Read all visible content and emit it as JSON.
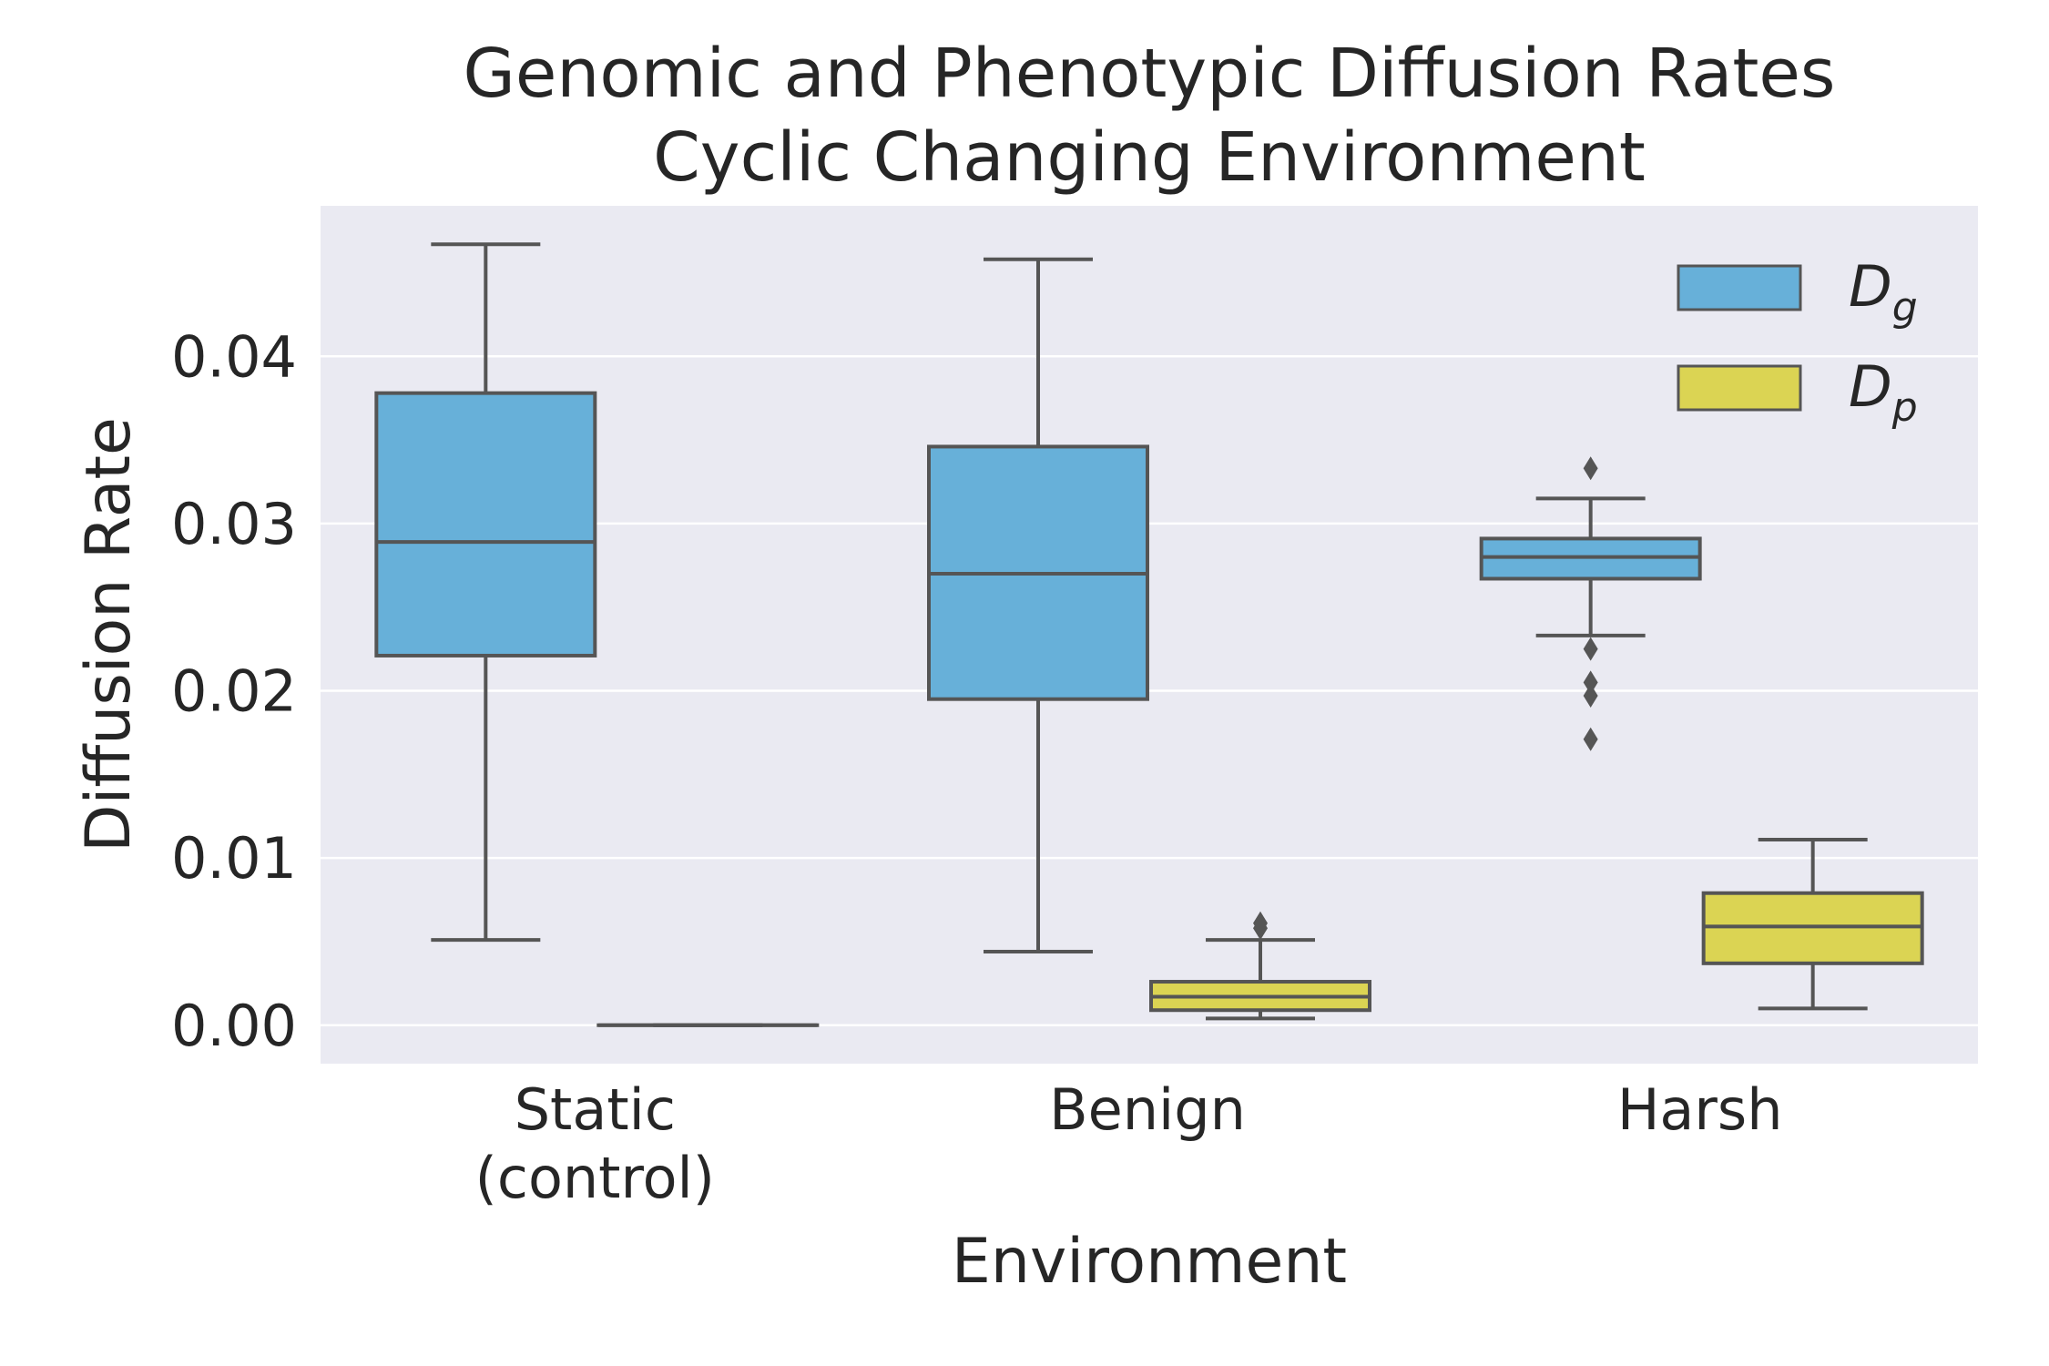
{
  "chart_data": {
    "type": "box",
    "title_line1": "Genomic and Phenotypic Diffusion Rates",
    "title_line2": "Cyclic Changing Environment",
    "xlabel": "Environment",
    "ylabel": "Diffusion Rate",
    "ylim": [
      -0.0023,
      0.049
    ],
    "yticks": [
      "0.00",
      "0.01",
      "0.02",
      "0.03",
      "0.04"
    ],
    "ytick_values": [
      0.0,
      0.01,
      0.02,
      0.03,
      0.04
    ],
    "grid": true,
    "legend_position": "top-right",
    "categories": [
      {
        "line1": "Static",
        "line2": "(control)"
      },
      {
        "line1": "Benign",
        "line2": ""
      },
      {
        "line1": "Harsh",
        "line2": ""
      }
    ],
    "series": [
      {
        "legend_main": "D",
        "legend_sub": "g",
        "color": "#67b0d9",
        "boxes": [
          {
            "whislo": 0.0051,
            "q1": 0.0221,
            "med": 0.0289,
            "q3": 0.0378,
            "whishi": 0.0467,
            "fliers": []
          },
          {
            "whislo": 0.0044,
            "q1": 0.0195,
            "med": 0.027,
            "q3": 0.0346,
            "whishi": 0.0458,
            "fliers": []
          },
          {
            "whislo": 0.0233,
            "q1": 0.0267,
            "med": 0.028,
            "q3": 0.0291,
            "whishi": 0.0315,
            "fliers": [
              0.0333,
              0.0225,
              0.0205,
              0.0197,
              0.0171
            ]
          }
        ]
      },
      {
        "legend_main": "D",
        "legend_sub": "p",
        "color": "#dbd453",
        "boxes": [
          {
            "whislo": 0.0,
            "q1": 0.0,
            "med": 0.0,
            "q3": 0.0,
            "whishi": 0.0,
            "fliers": []
          },
          {
            "whislo": 0.0004,
            "q1": 0.0009,
            "med": 0.0017,
            "q3": 0.0026,
            "whishi": 0.0051,
            "fliers": [
              0.0058,
              0.0061
            ]
          },
          {
            "whislo": 0.001,
            "q1": 0.0037,
            "med": 0.0059,
            "q3": 0.0079,
            "whishi": 0.0111,
            "fliers": []
          }
        ]
      }
    ]
  }
}
